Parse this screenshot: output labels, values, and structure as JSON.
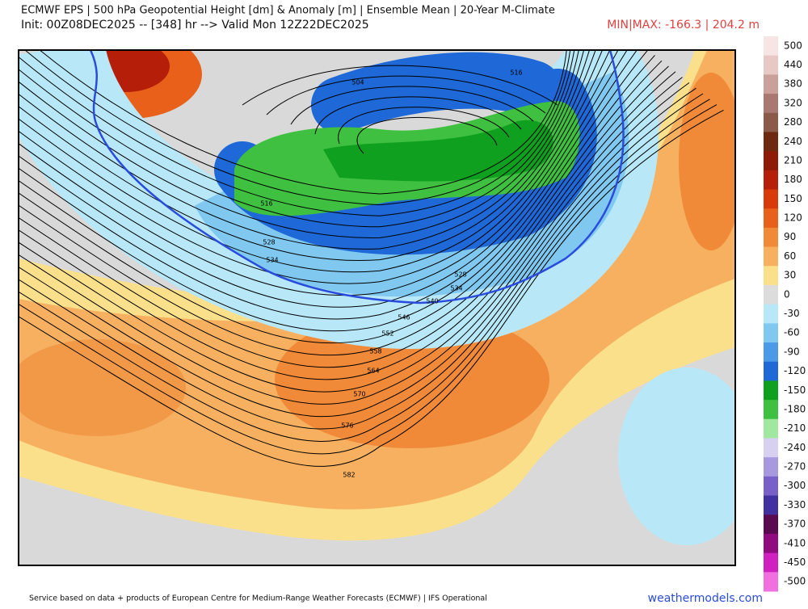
{
  "header": {
    "title": "ECMWF EPS | 500 hPa Geopotential Height [dm] & Anomaly [m] | Ensemble Mean | 20-Year M-Climate",
    "subtitle": "Init: 00Z08DEC2025 -- [348] hr --> Valid Mon 12Z22DEC2025",
    "minmax": "MIN|MAX: -166.3 | 204.2 m"
  },
  "map": {
    "contour_labels": [
      504,
      516,
      516,
      528,
      534,
      528,
      534,
      540,
      546,
      552,
      558,
      564,
      570,
      576,
      582
    ]
  },
  "legend": {
    "levels": [
      500,
      440,
      380,
      320,
      280,
      240,
      210,
      180,
      150,
      120,
      90,
      60,
      30,
      0,
      -30,
      -60,
      -90,
      -120,
      -150,
      -180,
      -210,
      -240,
      -270,
      -300,
      -330,
      -370,
      -410,
      -450,
      -500
    ],
    "colors": [
      "#f7e4e4",
      "#e8c8c4",
      "#c9a09a",
      "#a97870",
      "#8c5a48",
      "#6e2a10",
      "#8e1a08",
      "#b51e08",
      "#d83a0a",
      "#e8601a",
      "#f08a38",
      "#f6b060",
      "#fbe08c",
      "#dcdcdc",
      "#b8e8f8",
      "#80c8f0",
      "#4a9ae8",
      "#1e68d8",
      "#10a020",
      "#40c040",
      "#a0e8a0",
      "#d8d0f0",
      "#a898e0",
      "#7860c8",
      "#4030a0",
      "#5a0a50",
      "#900a80",
      "#d020c0",
      "#f070e0"
    ]
  },
  "footer": {
    "credit": "Service based on data + products of European Centre for Medium-Range Weather Forecasts (ECMWF) | IFS Operational",
    "site": "weathermodels.com"
  }
}
